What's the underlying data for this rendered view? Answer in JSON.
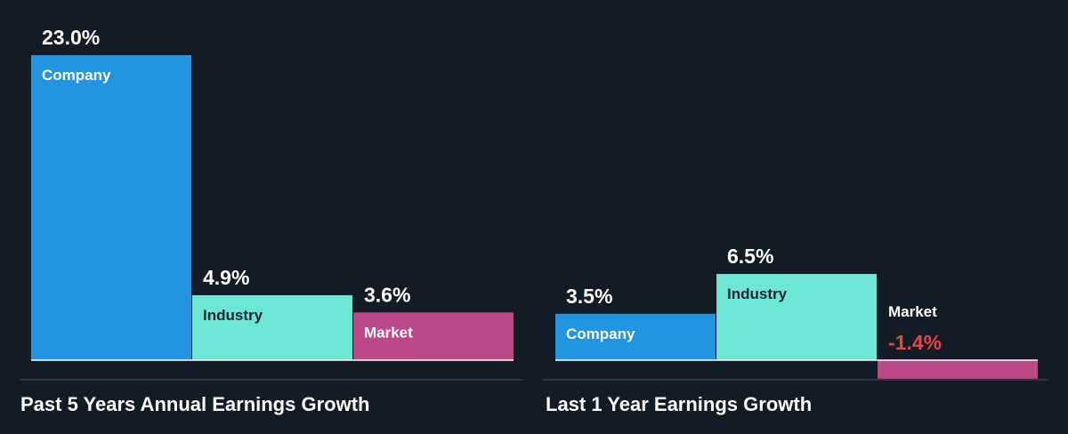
{
  "colors": {
    "background": "#151b24",
    "company": "#2394e0",
    "industry": "#6ee6d4",
    "market": "#bc4986",
    "negative_value": "#e8454b",
    "baseline": "#ffffff",
    "separator": "#4a505a"
  },
  "chart_data": [
    {
      "type": "bar",
      "title": "Past 5 Years Annual Earnings Growth",
      "categories": [
        "Company",
        "Industry",
        "Market"
      ],
      "values": [
        23.0,
        4.9,
        3.6
      ],
      "value_labels": [
        "23.0%",
        "4.9%",
        "3.6%"
      ],
      "unit": "%"
    },
    {
      "type": "bar",
      "title": "Last 1 Year Earnings Growth",
      "categories": [
        "Company",
        "Industry",
        "Market"
      ],
      "values": [
        3.5,
        6.5,
        -1.4
      ],
      "value_labels": [
        "3.5%",
        "6.5%",
        "-1.4%"
      ],
      "unit": "%"
    }
  ]
}
